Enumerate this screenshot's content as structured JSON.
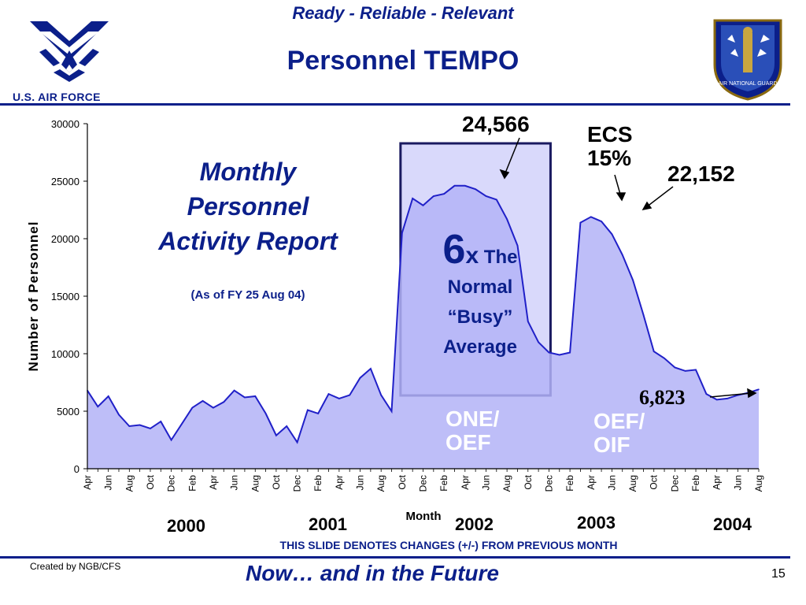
{
  "header": {
    "slogan": "Ready - Reliable - Relevant",
    "title": "Personnel TEMPO",
    "af_label": "U.S. AIR FORCE",
    "ang_seal_text": "AIR NATIONAL GUARD"
  },
  "annotations": {
    "report_line1": "Monthly",
    "report_line2": "Personnel",
    "report_line3": "Activity Report",
    "as_of": "(As of FY 25 Aug 04)",
    "peak1": "24,566",
    "ecs_line1": "ECS",
    "ecs_line2": "15%",
    "peak2": "22,152",
    "current": "6,823",
    "six_n": "6",
    "six_x": "x",
    "six_the": "The",
    "six_line2": "Normal",
    "six_line3": "“Busy”",
    "six_line4": "Average",
    "op1_line1": "ONE/",
    "op1_line2": "OEF",
    "op2_line1": "OEF/",
    "op2_line2": "OIF"
  },
  "years": [
    "2000",
    "2001",
    "2002",
    "2003",
    "2004"
  ],
  "footer": {
    "notice": "THIS SLIDE DENOTES CHANGES (+/-) FROM PREVIOUS MONTH",
    "tagline": "Now… and in the Future",
    "created": "Created by NGB/CFS",
    "page": "15"
  },
  "colors": {
    "fill": "#b3b3f7",
    "line": "#2020c8",
    "brand": "#0b1f8a",
    "highlight_fill": "#d9d9fb"
  },
  "chart_data": {
    "type": "area",
    "xlabel": "Month",
    "ylabel": "Number of Personnel",
    "ylim": [
      0,
      30000
    ],
    "yticks": [
      0,
      5000,
      10000,
      15000,
      20000,
      25000,
      30000
    ],
    "x": [
      "Apr",
      "",
      "Jun",
      "",
      "Aug",
      "",
      "Oct",
      "",
      "Dec",
      "",
      "Feb",
      "",
      "Apr",
      "",
      "Jun",
      "",
      "Aug",
      "",
      "Oct",
      "",
      "Dec",
      "",
      "Feb",
      "",
      "Apr",
      "",
      "Jun",
      "",
      "Aug",
      "",
      "Oct",
      "",
      "Dec",
      "",
      "Feb",
      "",
      "Apr",
      "",
      "Jun",
      "",
      "Aug",
      "",
      "Oct",
      "",
      "Dec",
      "",
      "Feb",
      "",
      "Apr",
      "",
      "Jun",
      "",
      "Aug",
      "",
      "Oct",
      "",
      "Dec",
      "",
      "Feb",
      "",
      "Apr",
      "",
      "Jun",
      "",
      "Aug"
    ],
    "values": [
      6800,
      5400,
      6300,
      4700,
      3700,
      3800,
      3500,
      4100,
      2500,
      3900,
      5300,
      5900,
      5300,
      5800,
      6800,
      6200,
      6300,
      4800,
      2900,
      3700,
      2300,
      5100,
      4800,
      6500,
      6100,
      6400,
      7900,
      8700,
      6400,
      5000,
      20500,
      23500,
      22900,
      23700,
      23900,
      24600,
      24600,
      24300,
      23700,
      23400,
      21700,
      19400,
      12800,
      11000,
      10100,
      9900,
      10100,
      21400,
      21900,
      21500,
      20400,
      18600,
      16400,
      13400,
      10200,
      9600,
      8800,
      8500,
      8600,
      6500,
      6000,
      6100,
      6400,
      6600,
      6900
    ],
    "tick_labels": [
      "Apr",
      "Jun",
      "Aug",
      "Oct",
      "Dec",
      "Feb",
      "Apr",
      "Jun",
      "Aug",
      "Oct",
      "Dec",
      "Feb",
      "Apr",
      "Jun",
      "Aug",
      "Oct",
      "Dec",
      "Feb",
      "Apr",
      "Jun",
      "Aug",
      "Oct",
      "Dec",
      "Feb",
      "Apr",
      "Jun",
      "Aug",
      "Oct",
      "Dec",
      "Feb",
      "Apr",
      "Jun",
      "Aug"
    ],
    "grid": false,
    "highlight_range": [
      30,
      44
    ]
  }
}
